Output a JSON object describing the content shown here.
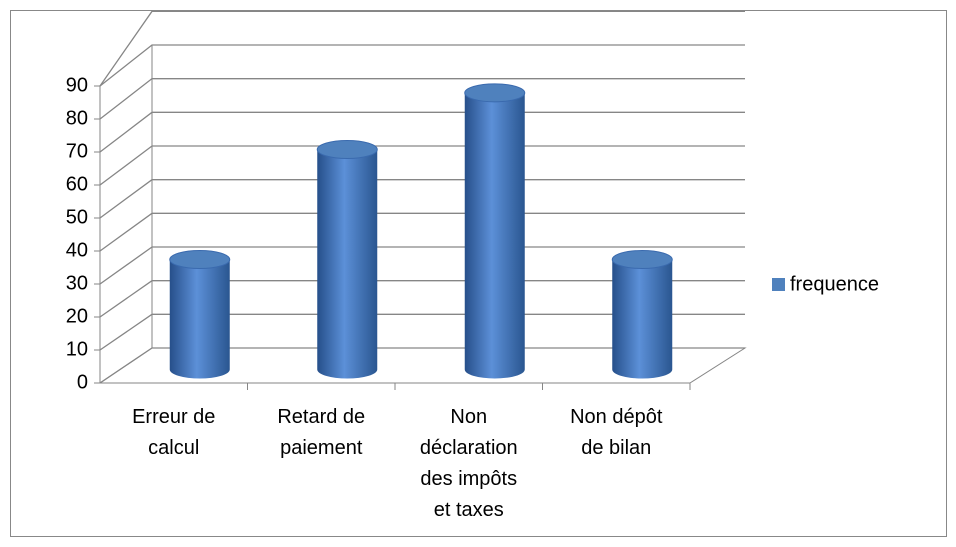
{
  "chart_data": {
    "type": "bar",
    "categories": [
      "Erreur de calcul",
      "Retard de paiement",
      "Non déclaration des impôts et taxes",
      "Non dépôt de bilan"
    ],
    "series": [
      {
        "name": "frequence",
        "color": "#4f81bd",
        "values": [
          33,
          66,
          83,
          33
        ]
      }
    ],
    "ylim": [
      0,
      90
    ],
    "yticks": [
      0,
      10,
      20,
      30,
      40,
      50,
      60,
      70,
      80,
      90
    ],
    "grid": true,
    "legend": "right"
  }
}
